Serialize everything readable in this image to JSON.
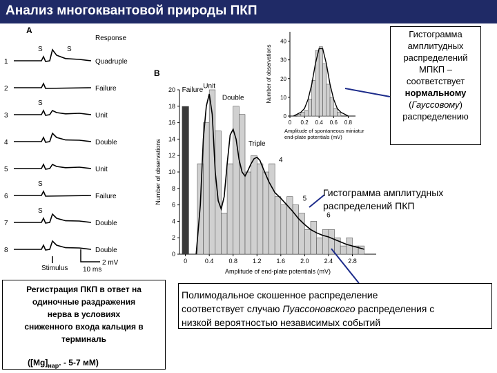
{
  "title": "Анализ многоквантовой природы ПКП",
  "panel_a": {
    "label": "A",
    "response_header": "Response",
    "traces": [
      {
        "num": "1",
        "marks": [
          "S",
          "S"
        ],
        "response": "Quadruple"
      },
      {
        "num": "2",
        "marks": [],
        "response": "Failure"
      },
      {
        "num": "3",
        "marks": [
          "S"
        ],
        "response": "Unit"
      },
      {
        "num": "4",
        "marks": [],
        "response": "Double"
      },
      {
        "num": "5",
        "marks": [],
        "response": "Unit"
      },
      {
        "num": "6",
        "marks": [
          "S"
        ],
        "response": "Failure"
      },
      {
        "num": "7",
        "marks": [
          "S"
        ],
        "response": "Double"
      },
      {
        "num": "8",
        "marks": [],
        "response": "Double"
      }
    ],
    "stimulus_label": "Stimulus",
    "scale_time": "10 ms",
    "scale_voltage": "2 mV"
  },
  "panel_b": {
    "label": "B",
    "chart_data": {
      "type": "bar",
      "xlabel": "Amplitude of end-plate potentials (mV)",
      "ylabel": "Number of observations",
      "xlim": [
        -0.1,
        3.2
      ],
      "ylim": [
        0,
        20
      ],
      "x_ticks": [
        "0",
        "0.4",
        "0.8",
        "1.2",
        "1.6",
        "2.0",
        "2.4",
        "2.8"
      ],
      "y_ticks": [
        "0",
        "2",
        "4",
        "6",
        "8",
        "10",
        "12",
        "14",
        "16",
        "18",
        "20"
      ],
      "failure_bar": {
        "x": 0.0,
        "value": 18,
        "label": "Failure"
      },
      "bin_width": 0.1,
      "bins_x": [
        0.25,
        0.35,
        0.45,
        0.55,
        0.65,
        0.75,
        0.85,
        0.95,
        1.05,
        1.15,
        1.25,
        1.35,
        1.45,
        1.55,
        1.65,
        1.75,
        1.85,
        1.95,
        2.05,
        2.15,
        2.25,
        2.35,
        2.45,
        2.55,
        2.65,
        2.75,
        2.85,
        2.95
      ],
      "bins_values": [
        11,
        16,
        20,
        15,
        5,
        11,
        18,
        17,
        10,
        12,
        11,
        10,
        11,
        7,
        6,
        7,
        6,
        5,
        3,
        4,
        2,
        3,
        3,
        2,
        1,
        2,
        1,
        1
      ],
      "peak_labels": [
        {
          "text": "Unit",
          "x": 0.4,
          "y": 20.2
        },
        {
          "text": "Double",
          "x": 0.8,
          "y": 18.8
        },
        {
          "text": "Triple",
          "x": 1.2,
          "y": 13.2
        },
        {
          "text": "4",
          "x": 1.6,
          "y": 11.2
        },
        {
          "text": "5",
          "x": 2.0,
          "y": 6.5
        },
        {
          "text": "6",
          "x": 2.4,
          "y": 4.5
        }
      ],
      "fit_curve": [
        [
          0.18,
          0
        ],
        [
          0.25,
          6
        ],
        [
          0.3,
          14
        ],
        [
          0.35,
          18
        ],
        [
          0.4,
          19.5
        ],
        [
          0.45,
          17
        ],
        [
          0.5,
          10
        ],
        [
          0.55,
          6.5
        ],
        [
          0.6,
          5.5
        ],
        [
          0.65,
          7
        ],
        [
          0.7,
          11
        ],
        [
          0.75,
          14.5
        ],
        [
          0.8,
          15.2
        ],
        [
          0.85,
          14
        ],
        [
          0.9,
          11.5
        ],
        [
          0.95,
          10
        ],
        [
          1.0,
          9.5
        ],
        [
          1.05,
          10.2
        ],
        [
          1.1,
          11
        ],
        [
          1.15,
          11.6
        ],
        [
          1.2,
          11.8
        ],
        [
          1.25,
          11.4
        ],
        [
          1.3,
          10.5
        ],
        [
          1.4,
          8.8
        ],
        [
          1.5,
          7.5
        ],
        [
          1.6,
          6.8
        ],
        [
          1.7,
          6.0
        ],
        [
          1.8,
          5.2
        ],
        [
          1.9,
          4.3
        ],
        [
          2.0,
          3.6
        ],
        [
          2.1,
          3.0
        ],
        [
          2.2,
          2.6
        ],
        [
          2.3,
          2.3
        ],
        [
          2.4,
          2.1
        ],
        [
          2.5,
          1.8
        ],
        [
          2.6,
          1.5
        ],
        [
          2.7,
          1.2
        ],
        [
          2.8,
          1.0
        ],
        [
          2.9,
          0.8
        ],
        [
          3.0,
          0.6
        ]
      ]
    },
    "inset": {
      "chart_data": {
        "type": "bar",
        "xlabel": "Amplitude of spontaneous miniature end-plate potentials (mV)",
        "ylabel": "Number of observations",
        "xlim": [
          0,
          0.9
        ],
        "ylim": [
          0,
          45
        ],
        "x_ticks": [
          "0",
          "0.2",
          "0.4",
          "0.6",
          "0.8"
        ],
        "y_ticks": [
          "0",
          "10",
          "20",
          "30",
          "40"
        ],
        "bin_width": 0.05,
        "bins_x": [
          0.125,
          0.175,
          0.225,
          0.275,
          0.325,
          0.375,
          0.425,
          0.475,
          0.525,
          0.575,
          0.625,
          0.675
        ],
        "bins_values": [
          1,
          2,
          3,
          9,
          19,
          35,
          37,
          28,
          17,
          10,
          4,
          2
        ],
        "fit_curve": [
          [
            0.05,
            0
          ],
          [
            0.1,
            1
          ],
          [
            0.15,
            2
          ],
          [
            0.2,
            4
          ],
          [
            0.25,
            9
          ],
          [
            0.3,
            17
          ],
          [
            0.35,
            28
          ],
          [
            0.4,
            36
          ],
          [
            0.45,
            36
          ],
          [
            0.5,
            28
          ],
          [
            0.55,
            17
          ],
          [
            0.6,
            9
          ],
          [
            0.65,
            4
          ],
          [
            0.7,
            2
          ],
          [
            0.75,
            1
          ],
          [
            0.8,
            0
          ]
        ]
      }
    }
  },
  "callout_top": {
    "line1": "Гистограмма",
    "line2": "амплитудных",
    "line3": "распределений",
    "line4": "МПКП –",
    "line5": "соответствует",
    "line6": "нормальному",
    "line7a": "(",
    "line7b": "Гауссовому",
    "line7c": ")",
    "line8": "распределению"
  },
  "hist_caption": {
    "line1": "Гистограмма амплитудных",
    "line2": "распределений ПКП"
  },
  "left_caption": {
    "line1": "Регистрация ПКП  в ответ на",
    "line2": "одиночные раздражения",
    "line3": "нерва в условиях",
    "line4": "сниженного входа кальция в",
    "line5": "терминаль",
    "mg": "([Mg]",
    "mg_sub": "нар",
    "mg_rest": ". - 5-7 мМ)"
  },
  "right_caption": {
    "line1": "Полимодальное скошенное распределение",
    "line2a": "соответствует случаю ",
    "line2b": "Пуассоновского",
    "line2c": " распределения с",
    "line3": "низкой вероятностью независимых событий"
  },
  "colors": {
    "title_bg": "#1f2a66",
    "bar_fill": "#d0d0d0",
    "failure_bar": "#3a3a3a",
    "pointer": "#1c2b8a"
  }
}
